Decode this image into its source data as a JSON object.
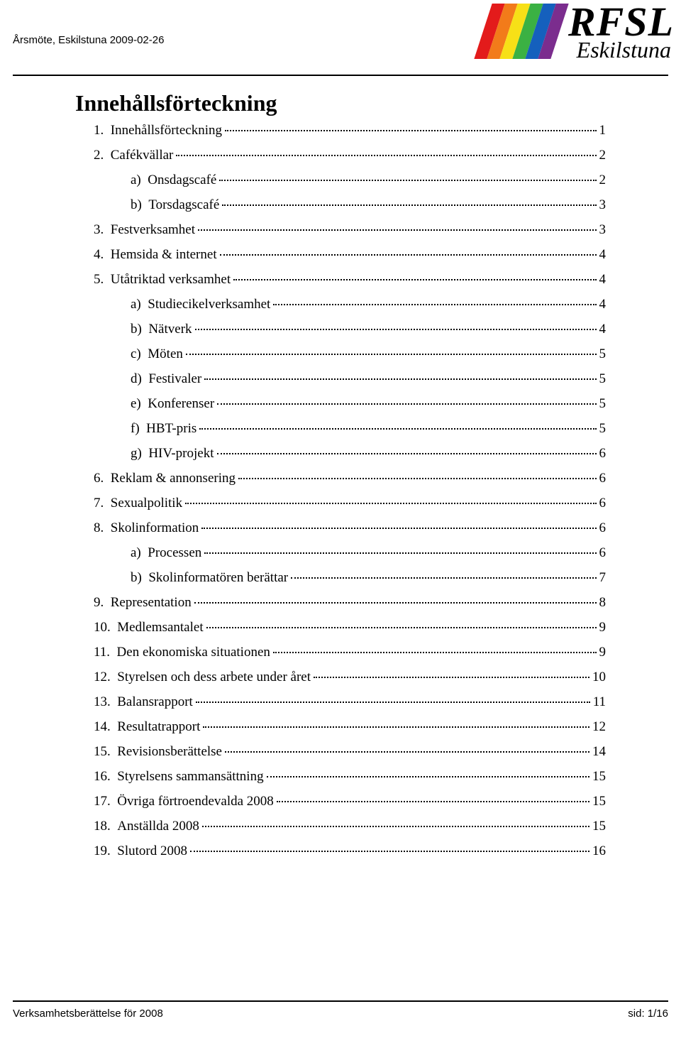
{
  "header": {
    "meeting_line": "Årsmöte, Eskilstuna 2009-02-26"
  },
  "logo": {
    "main": "RFSL",
    "sub": "Eskilstuna",
    "colors": [
      "#e31b1b",
      "#f27b1a",
      "#f7e017",
      "#3bb143",
      "#1560bd",
      "#7b2d8e"
    ]
  },
  "title": "Innehållsförteckning",
  "toc": [
    {
      "level": 1,
      "num": "1.",
      "label": "Innehållsförteckning",
      "page": "1"
    },
    {
      "level": 1,
      "num": "2.",
      "label": "Cafékvällar",
      "page": "2"
    },
    {
      "level": 2,
      "num": "a)",
      "label": "Onsdagscafé",
      "page": "2"
    },
    {
      "level": 2,
      "num": "b)",
      "label": "Torsdagscafé",
      "page": "3"
    },
    {
      "level": 1,
      "num": "3.",
      "label": "Festverksamhet",
      "page": "3"
    },
    {
      "level": 1,
      "num": "4.",
      "label": "Hemsida & internet",
      "page": "4"
    },
    {
      "level": 1,
      "num": "5.",
      "label": "Utåtriktad verksamhet",
      "page": "4"
    },
    {
      "level": 2,
      "num": "a)",
      "label": "Studiecikelverksamhet",
      "page": "4"
    },
    {
      "level": 2,
      "num": "b)",
      "label": "Nätverk",
      "page": "4"
    },
    {
      "level": 2,
      "num": "c)",
      "label": "Möten",
      "page": "5"
    },
    {
      "level": 2,
      "num": "d)",
      "label": "Festivaler",
      "page": "5"
    },
    {
      "level": 2,
      "num": "e)",
      "label": "Konferenser",
      "page": "5"
    },
    {
      "level": 2,
      "num": "f)",
      "label": "HBT-pris",
      "page": "5"
    },
    {
      "level": 2,
      "num": "g)",
      "label": "HIV-projekt",
      "page": "6"
    },
    {
      "level": 1,
      "num": "6.",
      "label": "Reklam & annonsering",
      "page": "6"
    },
    {
      "level": 1,
      "num": "7.",
      "label": "Sexualpolitik",
      "page": "6"
    },
    {
      "level": 1,
      "num": "8.",
      "label": "Skolinformation",
      "page": "6"
    },
    {
      "level": 2,
      "num": "a)",
      "label": "Processen",
      "page": "6"
    },
    {
      "level": 2,
      "num": "b)",
      "label": "Skolinformatören berättar",
      "page": "7"
    },
    {
      "level": 1,
      "num": "9.",
      "label": "Representation",
      "page": "8"
    },
    {
      "level": 1,
      "num": "10.",
      "label": "Medlemsantalet",
      "page": "9"
    },
    {
      "level": 1,
      "num": "11.",
      "label": "Den ekonomiska situationen",
      "page": "9"
    },
    {
      "level": 1,
      "num": "12.",
      "label": "Styrelsen och dess arbete under året",
      "page": "10"
    },
    {
      "level": 1,
      "num": "13.",
      "label": "Balansrapport",
      "page": "11"
    },
    {
      "level": 1,
      "num": "14.",
      "label": "Resultatrapport",
      "page": "12"
    },
    {
      "level": 1,
      "num": "15.",
      "label": "Revisionsberättelse",
      "page": "14"
    },
    {
      "level": 1,
      "num": "16.",
      "label": "Styrelsens sammansättning",
      "page": "15"
    },
    {
      "level": 1,
      "num": "17.",
      "label": "Övriga förtroendevalda 2008",
      "page": "15"
    },
    {
      "level": 1,
      "num": "18.",
      "label": "Anställda 2008",
      "page": "15"
    },
    {
      "level": 1,
      "num": "19.",
      "label": "Slutord 2008",
      "page": "16"
    }
  ],
  "footer": {
    "left": "Verksamhetsberättelse för 2008",
    "right": "sid: 1/16"
  }
}
